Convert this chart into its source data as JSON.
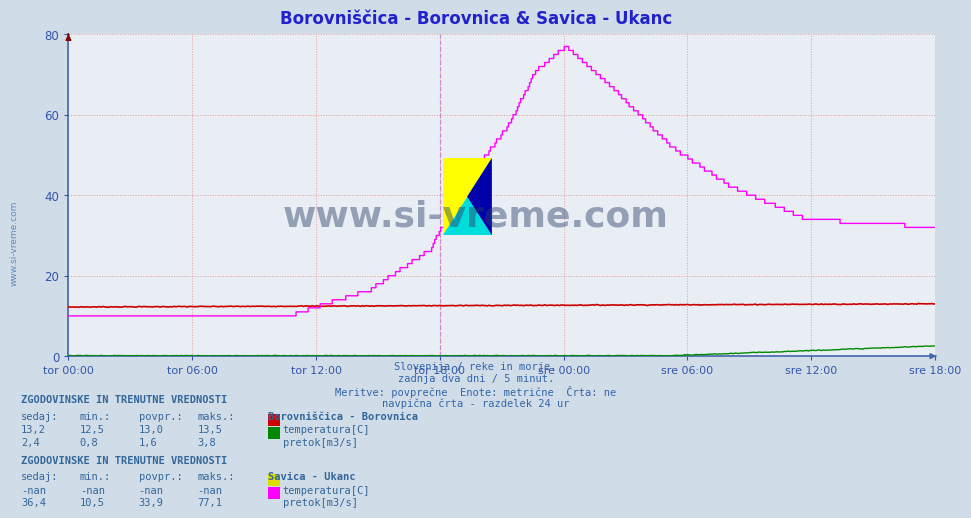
{
  "title": "Borovniščica - Borovnica & Savica - Ukanc",
  "title_color": "#2222cc",
  "bg_color": "#d0dce8",
  "plot_bg_color": "#e8eef4",
  "grid_color": "#ee9999",
  "ylabel_color": "#3355aa",
  "xlabel_color": "#3355aa",
  "yticks": [
    0,
    20,
    40,
    60,
    80
  ],
  "ymax": 80,
  "ymin": 0,
  "xtick_labels": [
    "tor 00:00",
    "tor 06:00",
    "tor 12:00",
    "tor 18:00",
    "sre 00:00",
    "sre 06:00",
    "sre 12:00",
    "sre 18:00"
  ],
  "n_points": 576,
  "borovnica_temp_color": "#cc0000",
  "borovnica_pretok_color": "#008800",
  "savica_temp_color": "#dddd00",
  "savica_pretok_color": "#ff00ff",
  "subtitle_lines": [
    "Slovenija / reke in morje.",
    "zadnja dva dni / 5 minut.",
    "Meritve: povprečne  Enote: metrične  Črta: ne",
    "navpična črta - razdelek 24 ur"
  ],
  "subtitle_color": "#3366aa",
  "legend_borovnica_title": "Borovniščica - Borovnica",
  "legend_savica_title": "Savica - Ukanc",
  "table_header": "ZGODOVINSKE IN TRENUTNE VREDNOSTI",
  "table_cols": [
    "sedaj:",
    "min.:",
    "povpr.:",
    "maks.:"
  ],
  "borovnica_temp_row": [
    "13,2",
    "12,5",
    "13,0",
    "13,5"
  ],
  "borovnica_pretok_row": [
    "2,4",
    "0,8",
    "1,6",
    "3,8"
  ],
  "savica_temp_row": [
    "-nan",
    "-nan",
    "-nan",
    "-nan"
  ],
  "savica_pretok_row": [
    "36,4",
    "10,5",
    "33,9",
    "77,1"
  ],
  "temp_label": "temperatura[C]",
  "pretok_label": "pretok[m3/s]",
  "watermark_text": "www.si-vreme.com",
  "watermark_color": "#2a3f6a",
  "sivreme_vert_color": "#3366aa"
}
